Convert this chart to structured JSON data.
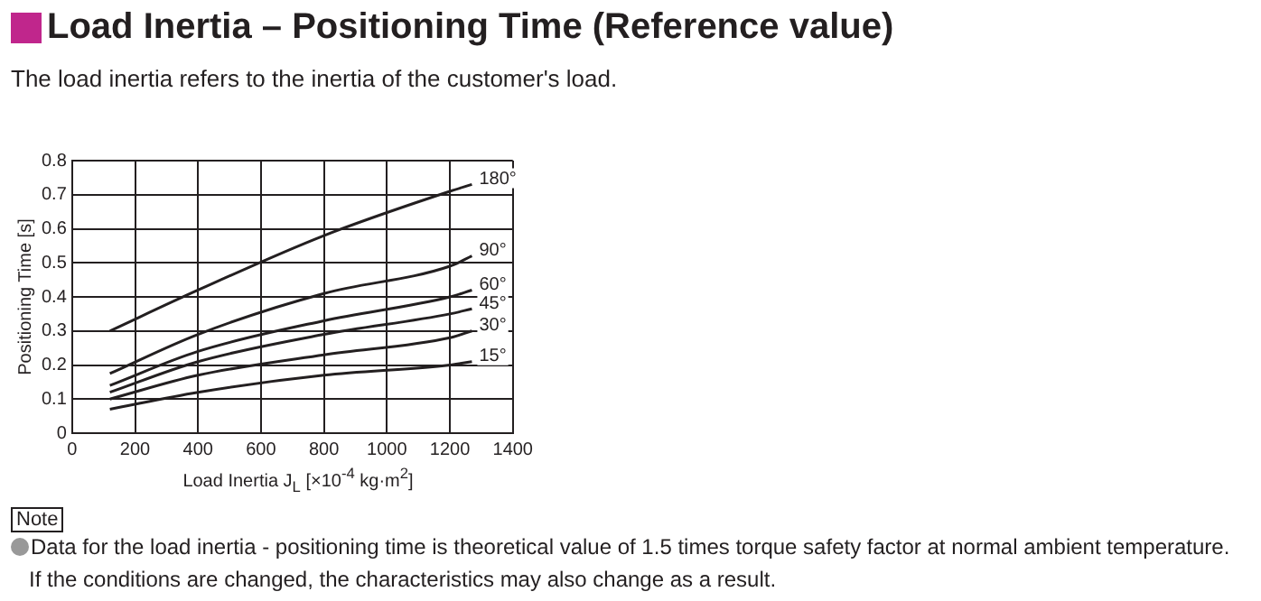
{
  "chart_data": {
    "type": "line",
    "title": "Load Inertia – Positioning Time (Reference value)",
    "subtitle": "The load inertia refers to the inertia of the customer's load.",
    "xlabel": "Load Inertia J$_{L}$ [×10$^{-4}$ kg·m$^{2}$]",
    "ylabel": "Positioning Time [s]",
    "x": [
      120,
      400,
      800,
      1200,
      1270
    ],
    "series": [
      {
        "name": "180°",
        "color": "#231f20",
        "values": [
          0.3,
          0.42,
          0.58,
          0.71,
          0.73
        ]
      },
      {
        "name": "90°",
        "color": "#231f20",
        "values": [
          0.175,
          0.29,
          0.41,
          0.49,
          0.52
        ]
      },
      {
        "name": "60°",
        "color": "#231f20",
        "values": [
          0.14,
          0.24,
          0.33,
          0.4,
          0.42
        ]
      },
      {
        "name": "45°",
        "color": "#231f20",
        "values": [
          0.12,
          0.21,
          0.29,
          0.35,
          0.365
        ]
      },
      {
        "name": "30°",
        "color": "#231f20",
        "values": [
          0.1,
          0.17,
          0.23,
          0.28,
          0.3
        ]
      },
      {
        "name": "15°",
        "color": "#231f20",
        "values": [
          0.07,
          0.12,
          0.17,
          0.2,
          0.21
        ]
      }
    ],
    "xlim": [
      0,
      1400
    ],
    "xticks": [
      0,
      200,
      400,
      600,
      800,
      1000,
      1200,
      1400
    ],
    "ylim": [
      0,
      0.8
    ],
    "yticks": [
      0,
      0.1,
      0.2,
      0.3,
      0.4,
      0.5,
      0.6,
      0.7,
      0.8
    ],
    "grid": true,
    "legend": false,
    "marker": "none",
    "line_style": "solid",
    "annotations": [
      "Note",
      "Data for the load inertia - positioning time is theoretical value of 1.5 times torque safety factor at normal ambient temperature.",
      "If the conditions are changed, the characteristics may also change as a result."
    ]
  }
}
